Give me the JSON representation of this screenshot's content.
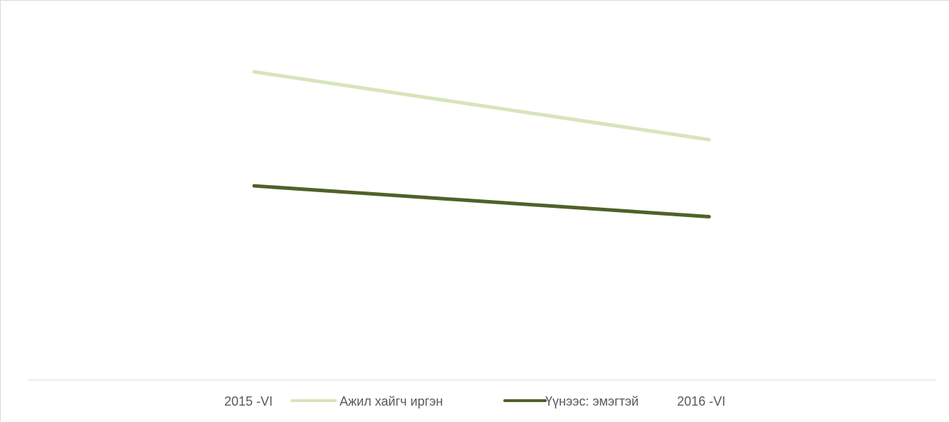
{
  "chart_data": {
    "type": "line",
    "title": "",
    "xlabel": "",
    "ylabel": "",
    "categories": [
      "2015 -VI",
      "2016 -VI"
    ],
    "series": [
      {
        "name": "Ажил хайгч иргэн",
        "values": [
          100,
          78
        ],
        "color": "#d7e4bd"
      },
      {
        "name": "Үүнээс: эмэгтэй",
        "values": [
          63,
          53
        ],
        "color": "#4f6228"
      }
    ],
    "ylim": [
      0,
      115
    ],
    "grid": false,
    "legend_placement": "bottom"
  }
}
